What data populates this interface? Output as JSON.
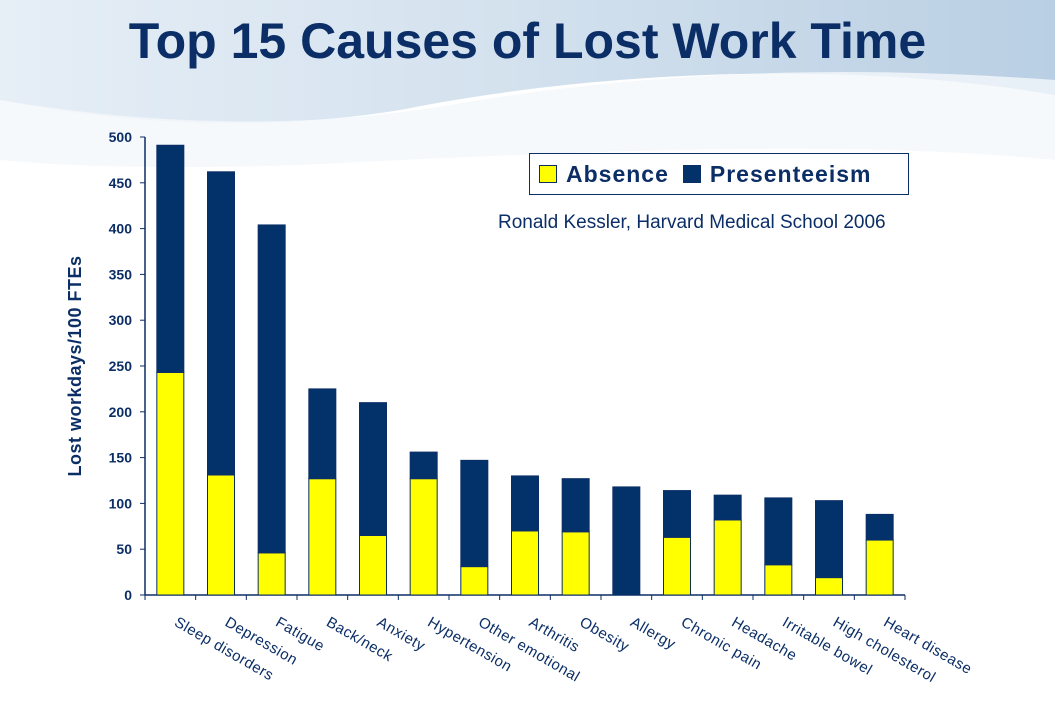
{
  "title": "Top 15 Causes of Lost Work Time",
  "credit": "Ronald Kessler, Harvard Medical School 2006",
  "colors": {
    "absence": "#FFFF00",
    "presenteeism": "#03326A",
    "text": "#0B2E66"
  },
  "chart_data": {
    "type": "bar",
    "stacked": true,
    "title": "Top 15 Causes of Lost Work Time",
    "xlabel": "",
    "ylabel": "Lost workdays/100 FTEs",
    "ylim": [
      0,
      500
    ],
    "yticks": [
      0,
      50,
      100,
      150,
      200,
      250,
      300,
      350,
      400,
      450,
      500
    ],
    "legend": {
      "position": "top-right",
      "entries": [
        "Absence",
        "Presenteeism"
      ]
    },
    "categories": [
      "Sleep disorders",
      "Depression",
      "Fatigue",
      "Back/neck",
      "Anxiety",
      "Hypertension",
      "Other emotional",
      "Arthritis",
      "Obesity",
      "Allergy",
      "Chronic pain",
      "Headache",
      "Irritable bowel",
      "High cholesterol",
      "Heart disease"
    ],
    "series": [
      {
        "name": "Absence",
        "values": [
          243,
          131,
          46,
          127,
          65,
          127,
          31,
          70,
          69,
          0,
          63,
          82,
          33,
          19,
          60
        ]
      },
      {
        "name": "Presenteeism",
        "values": [
          248,
          331,
          358,
          98,
          145,
          29,
          116,
          60,
          58,
          118,
          51,
          27,
          73,
          84,
          28
        ]
      }
    ]
  }
}
